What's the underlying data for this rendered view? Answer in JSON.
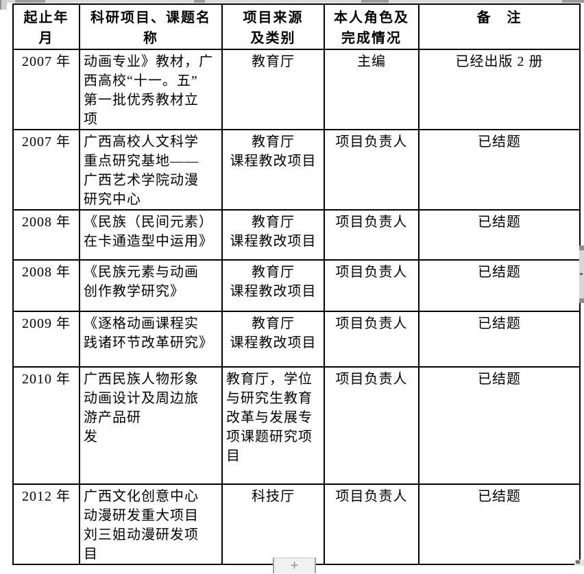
{
  "table": {
    "headers": [
      "起止年\n月",
      "科研项目、课题名称",
      "项目来源\n及类别",
      "本人角色及\n完成情况",
      "备　注"
    ],
    "rows": [
      {
        "period": "2007 年",
        "project": "动画专业》教材，广\n西高校“十一。五”\n第一批优秀教材立\n项",
        "source": "教育厅",
        "role": "主编",
        "remark": "已经出版 2 册"
      },
      {
        "period": "2007 年",
        "project": "广西高校人文科学\n重点研究基地——\n广西艺术学院动漫\n研究中心",
        "source": "教育厅\n课程教改项目",
        "role": "项目负责人",
        "remark": "已结题"
      },
      {
        "period": "2008 年",
        "project": "《民族（民间元素）\n在卡通造型中运用》",
        "source": "教育厅\n课程教改项目",
        "role": "项目负责人",
        "remark": "已结题"
      },
      {
        "period": "2008 年",
        "project": "《民族元素与动画\n创作教学研究》",
        "source": "教育厅\n课程教改项目",
        "role": "项目负责人",
        "remark": "已结题"
      },
      {
        "period": "2009 年",
        "project": "《逐格动画课程实\n践诸环节改革研究》",
        "source": "教育厅\n课程教改项目",
        "role": "项目负责人",
        "remark": "已结题"
      },
      {
        "period": "2010 年",
        "project": "广西民族人物形象\n动画设计及周边旅\n游产品研\n发",
        "source": "教育厅，学位\n与研究生教育\n改革与发展专\n项课题研究项\n目",
        "role": "项目负责人",
        "remark": "已结题"
      },
      {
        "period": "2012 年",
        "project": "广西文化创意中心\n动漫研发重大项目\n刘三姐动漫研发项\n目",
        "source": "科技厅",
        "role": "项目负责人",
        "remark": "已结题"
      }
    ]
  },
  "controls": {
    "add_button_label": "+"
  },
  "colors": {
    "border": "#000000",
    "text": "#000000",
    "page_background": "#ffffff",
    "artifact_gray": "#d9d9d9"
  }
}
